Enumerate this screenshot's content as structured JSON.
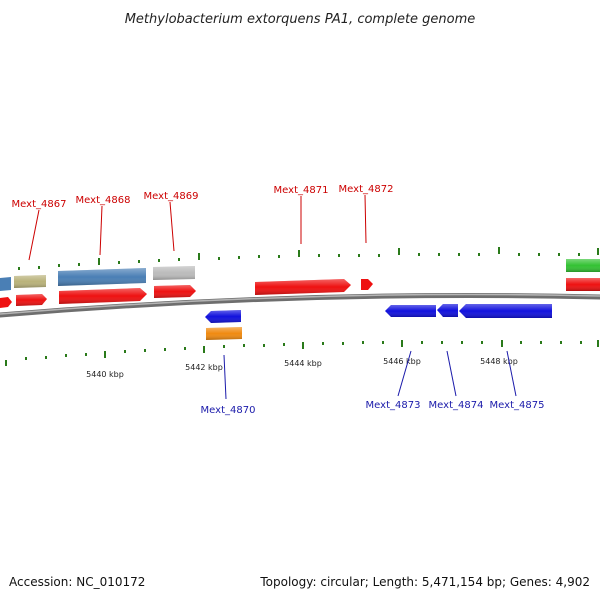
{
  "title": "Methylobacterium extorquens PA1, complete genome",
  "footer": {
    "accession": "Accession: NC_010172",
    "summary": "Topology: circular; Length: 5,471,154 bp; Genes: 4,902"
  },
  "colors": {
    "forward_label": "#cc0000",
    "reverse_label": "#1a1aaa",
    "backbone": "#8a8a8a",
    "tick": "#2a7a1a",
    "red": "#ee1111",
    "blue": "#1111dd",
    "steel": "#4a7fb5",
    "olive": "#b9b27a",
    "grey": "#bbbbbb",
    "orange": "#f08a10",
    "green": "#33c233"
  },
  "scale_labels": [
    "5440 kbp",
    "5442 kbp",
    "5444 kbp",
    "5446 kbp",
    "5448 kbp"
  ],
  "forward_labels": [
    "Mext_4867",
    "Mext_4868",
    "Mext_4869",
    "Mext_4871",
    "Mext_4872"
  ],
  "reverse_labels": [
    "Mext_4870",
    "Mext_4873",
    "Mext_4874",
    "Mext_4875"
  ]
}
